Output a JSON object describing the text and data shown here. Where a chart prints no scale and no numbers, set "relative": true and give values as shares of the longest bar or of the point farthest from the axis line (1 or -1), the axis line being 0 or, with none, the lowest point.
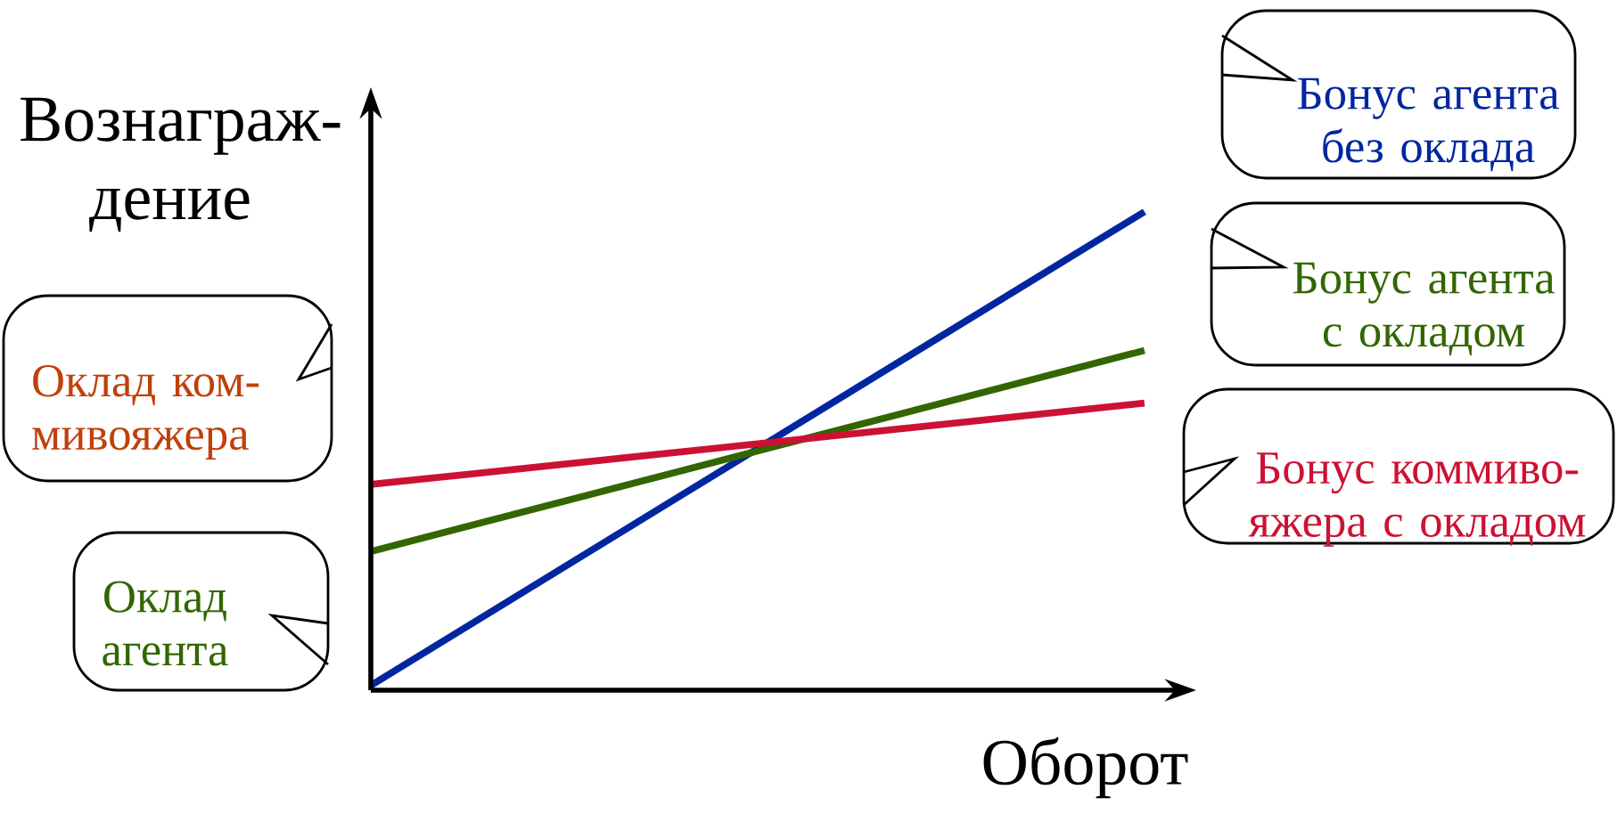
{
  "chart_data": {
    "type": "line",
    "relative": true,
    "xlabel": "Оборот",
    "ylabel": "Вознаграж-дение",
    "categories": [
      null,
      null
    ],
    "series": [
      {
        "name": "Бонус агента без оклада",
        "color": "#0026a0",
        "values": [
          0.01,
          1
        ]
      },
      {
        "name": "Бонус агента с окладом",
        "color": "#336600",
        "values": [
          0.29,
          0.71
        ]
      },
      {
        "name": "Бонус коммиво-яжера с окладом",
        "color": "#cc1133",
        "values": [
          0.43,
          0.6
        ]
      }
    ],
    "annotations": [
      "Оклад ком-мивояжера",
      "Оклад агента"
    ]
  }
}
